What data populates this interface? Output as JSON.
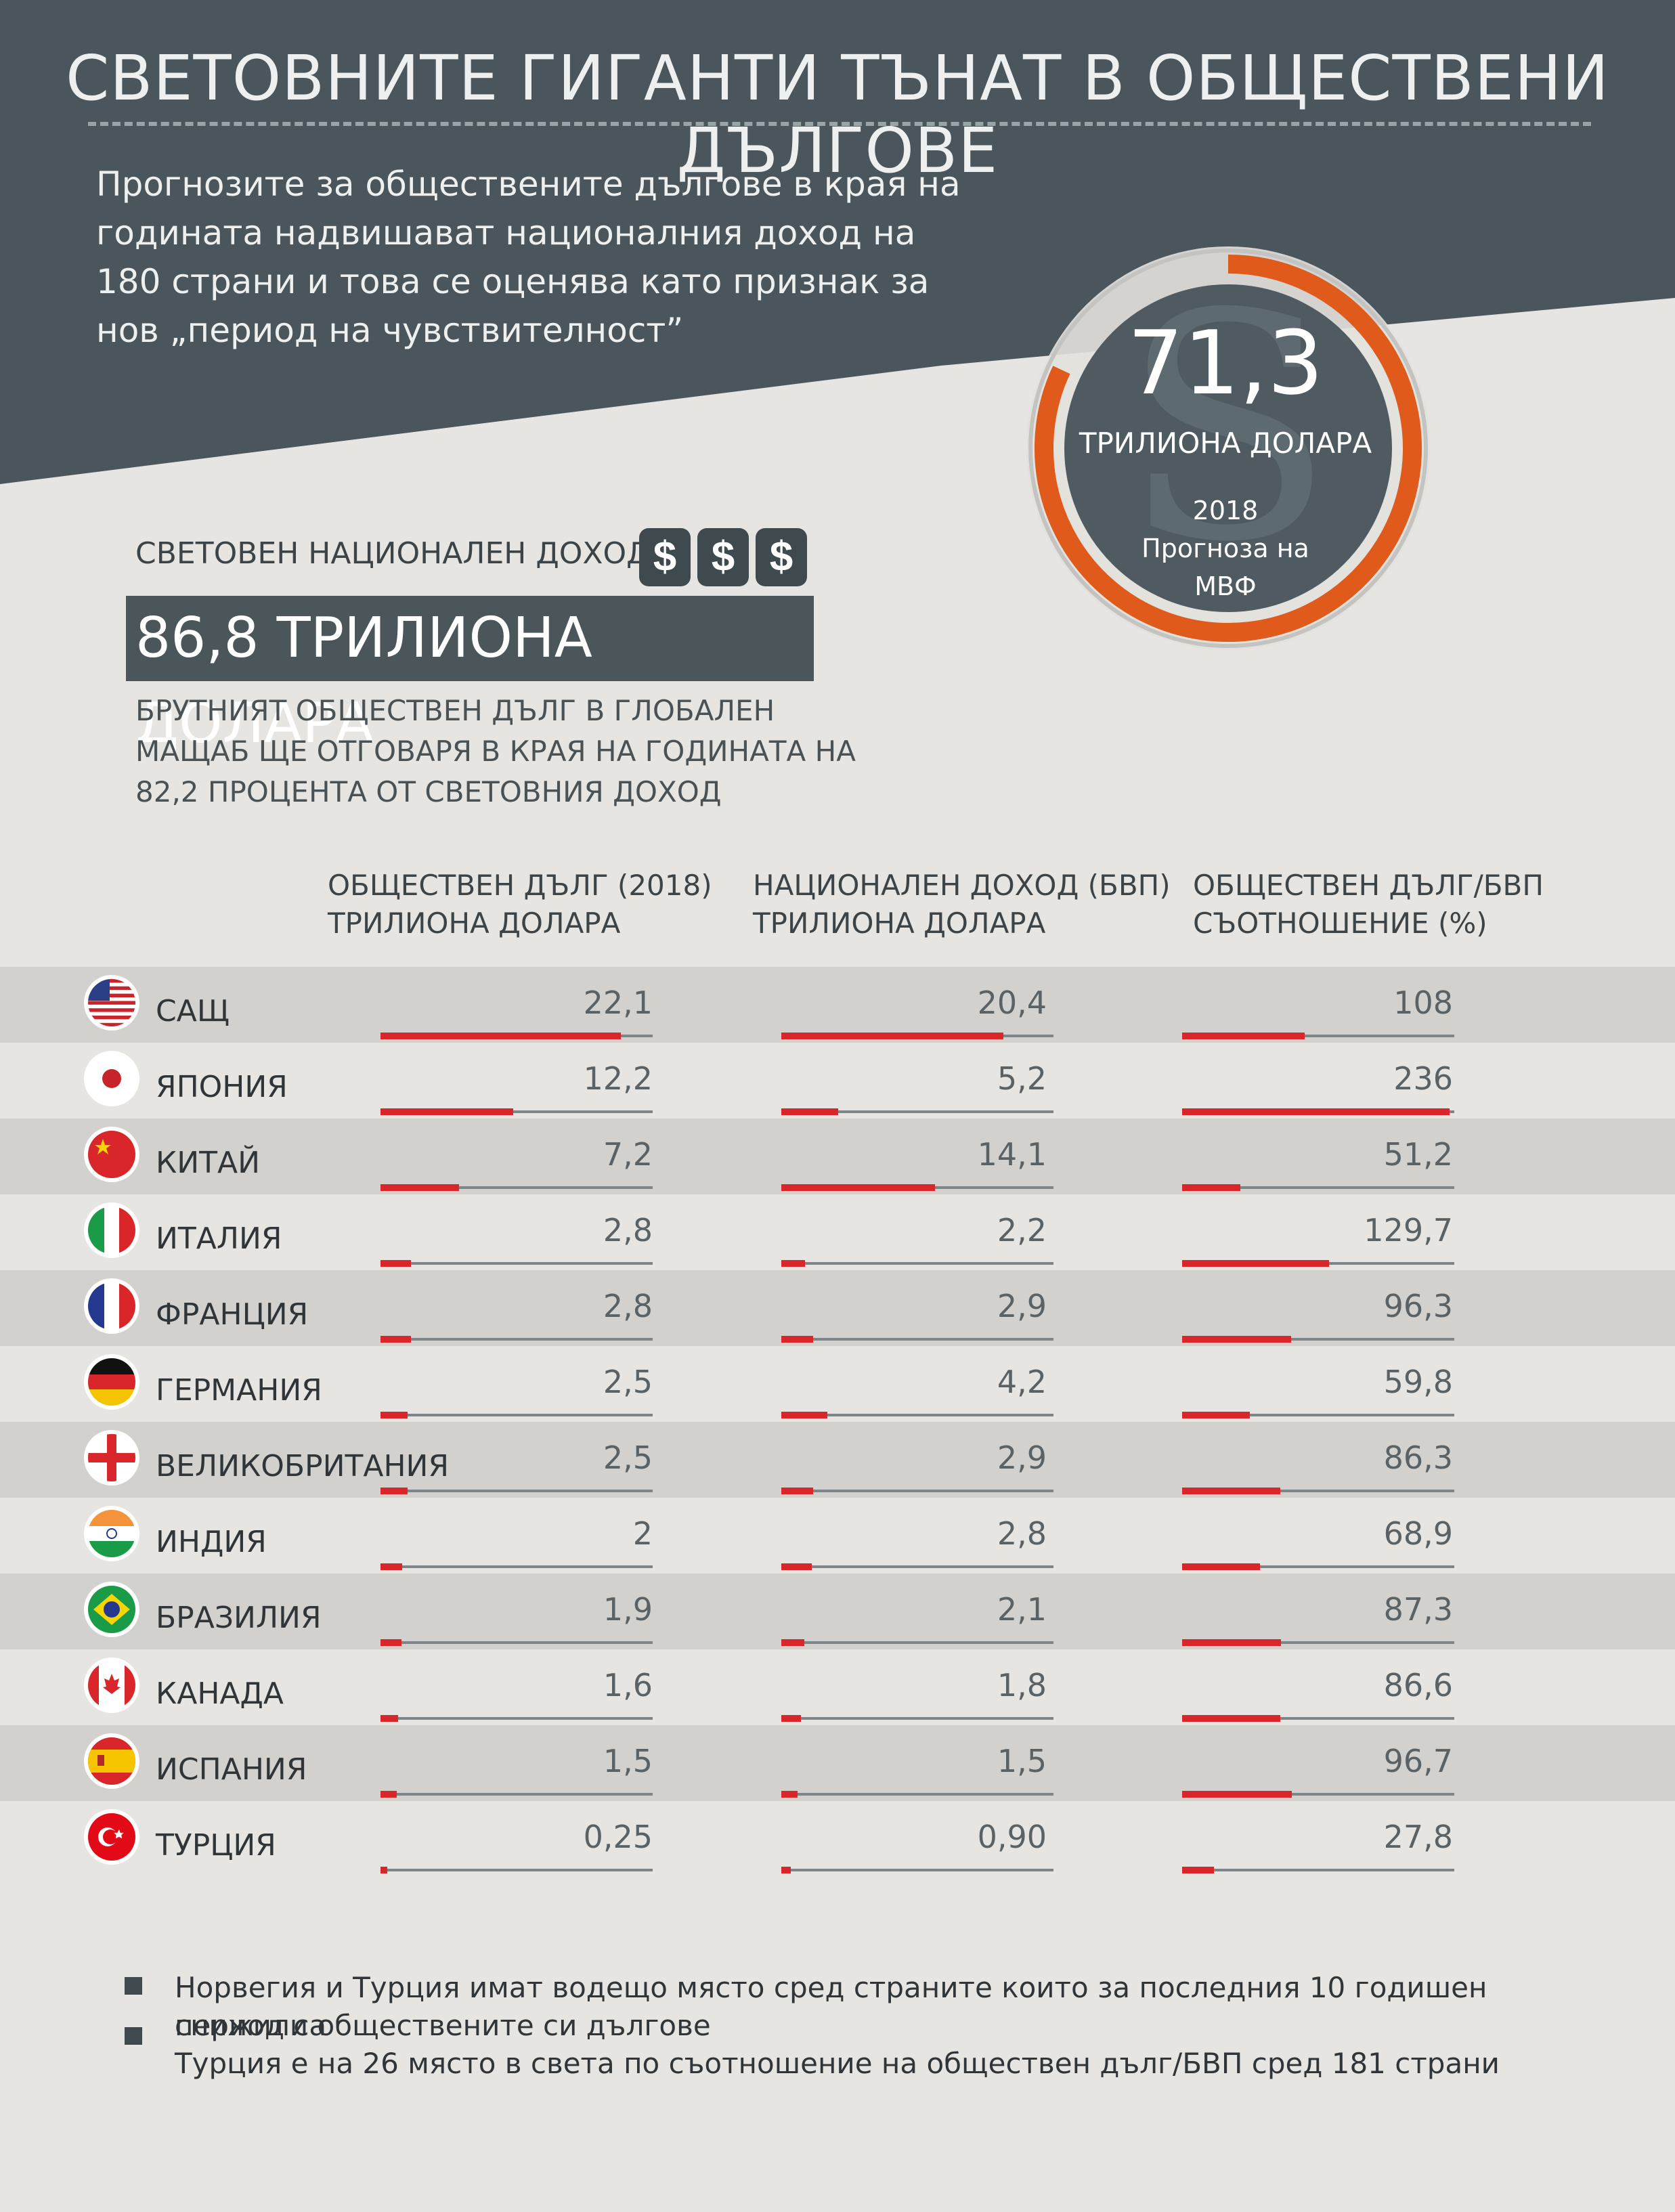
{
  "header": {
    "title": "СВЕТОВНИТЕ ГИГАНТИ ТЪНАТ В ОБЩЕСТВЕНИ ДЪЛГОВЕ",
    "subtitle": "Прогнозите за обществените дългове в края на годината надвишават националния доход на 180 страни и това се оценява като признак за нов „период на чувствителност”"
  },
  "gauge": {
    "value": "71,3",
    "unit": "ТРИЛИОНА ДОЛАРА",
    "year": "2018",
    "source_line1": "Прогноза на",
    "source_line2": "МВФ",
    "fraction": 0.82
  },
  "income": {
    "label": "СВЕТОВЕН НАЦИОНАЛЕН ДОХОД",
    "dollar_symbol": "$",
    "value": "86,8 ТРИЛИОНА ДОЛАРА",
    "description": "БРУТНИЯТ ОБЩЕСТВЕН ДЪЛГ В ГЛОБАЛЕН МАЩАБ ЩЕ ОТГОВАРЯ В КРАЯ НА ГОДИНАТА НА 82,2 ПРОЦЕНТА ОТ СВЕТОВНИЯ ДОХОД"
  },
  "columns": {
    "debt": {
      "line1": "ОБЩЕСТВЕН ДЪЛГ (2018)",
      "line2": "ТРИЛИОНА ДОЛАРА"
    },
    "gdp": {
      "line1": "НАЦИОНАЛЕН ДОХОД (БВП)",
      "line2": "ТРИЛИОНА ДОЛАРА"
    },
    "ratio": {
      "line1": "ОБЩЕСТВЕН ДЪЛГ/БВП",
      "line2": "СЪОТНОШЕНИЕ (%)"
    }
  },
  "chart_data": {
    "type": "table",
    "columns": [
      "ОБЩЕСТВЕН ДЪЛГ (2018) ТРИЛИОНА ДОЛАРА",
      "НАЦИОНАЛЕН ДОХОД (БВП) ТРИЛИОНА ДОЛАРА",
      "ОБЩЕСТВЕН ДЪЛГ/БВП СЪОТНОШЕНИЕ (%)"
    ],
    "rows": [
      {
        "country": "САЩ",
        "flag": "us-flag-icon",
        "debt": "22,1",
        "gdp": "20,4",
        "ratio": "108",
        "debt_v": 22.1,
        "gdp_v": 20.4,
        "ratio_v": 108
      },
      {
        "country": "ЯПОНИЯ",
        "flag": "japan-flag-icon",
        "debt": "12,2",
        "gdp": "5,2",
        "ratio": "236",
        "debt_v": 12.2,
        "gdp_v": 5.2,
        "ratio_v": 236
      },
      {
        "country": "КИТАЙ",
        "flag": "china-flag-icon",
        "debt": "7,2",
        "gdp": "14,1",
        "ratio": "51,2",
        "debt_v": 7.2,
        "gdp_v": 14.1,
        "ratio_v": 51.2
      },
      {
        "country": "ИТАЛИЯ",
        "flag": "italy-flag-icon",
        "debt": "2,8",
        "gdp": "2,2",
        "ratio": "129,7",
        "debt_v": 2.8,
        "gdp_v": 2.2,
        "ratio_v": 129.7
      },
      {
        "country": "ФРАНЦИЯ",
        "flag": "france-flag-icon",
        "debt": "2,8",
        "gdp": "2,9",
        "ratio": "96,3",
        "debt_v": 2.8,
        "gdp_v": 2.9,
        "ratio_v": 96.3
      },
      {
        "country": "ГЕРМАНИЯ",
        "flag": "germany-flag-icon",
        "debt": "2,5",
        "gdp": "4,2",
        "ratio": "59,8",
        "debt_v": 2.5,
        "gdp_v": 4.2,
        "ratio_v": 59.8
      },
      {
        "country": "ВЕЛИКОБРИТАНИЯ",
        "flag": "england-flag-icon",
        "debt": "2,5",
        "gdp": "2,9",
        "ratio": "86,3",
        "debt_v": 2.5,
        "gdp_v": 2.9,
        "ratio_v": 86.3
      },
      {
        "country": "ИНДИЯ",
        "flag": "india-flag-icon",
        "debt": "2",
        "gdp": "2,8",
        "ratio": "68,9",
        "debt_v": 2.0,
        "gdp_v": 2.8,
        "ratio_v": 68.9
      },
      {
        "country": "БРАЗИЛИЯ",
        "flag": "brazil-flag-icon",
        "debt": "1,9",
        "gdp": "2,1",
        "ratio": "87,3",
        "debt_v": 1.9,
        "gdp_v": 2.1,
        "ratio_v": 87.3
      },
      {
        "country": "КАНАДА",
        "flag": "canada-flag-icon",
        "debt": "1,6",
        "gdp": "1,8",
        "ratio": "86,6",
        "debt_v": 1.6,
        "gdp_v": 1.8,
        "ratio_v": 86.6
      },
      {
        "country": "ИСПАНИЯ",
        "flag": "spain-flag-icon",
        "debt": "1,5",
        "gdp": "1,5",
        "ratio": "96,7",
        "debt_v": 1.5,
        "gdp_v": 1.5,
        "ratio_v": 96.7
      },
      {
        "country": "ТУРЦИЯ",
        "flag": "turkey-flag-icon",
        "debt": "0,25",
        "gdp": "0,90",
        "ratio": "27,8",
        "debt_v": 0.25,
        "gdp_v": 0.9,
        "ratio_v": 27.8
      }
    ],
    "scale_max": {
      "debt": 25,
      "gdp": 25,
      "ratio": 240
    }
  },
  "notes": {
    "line1": "Норвегия и Турция имат водещо място сред страните които за последния 10 годишен период са",
    "line2": "снижили обществените си дългове",
    "line3": "Турция е на 26 място в света по съотношение на обществен дълг/БВП сред 181 страни"
  },
  "colors": {
    "header": "#4a565c",
    "accent_red": "#d8262a",
    "gauge_ring": "#e05a1c",
    "background": "#e7e5e1"
  }
}
